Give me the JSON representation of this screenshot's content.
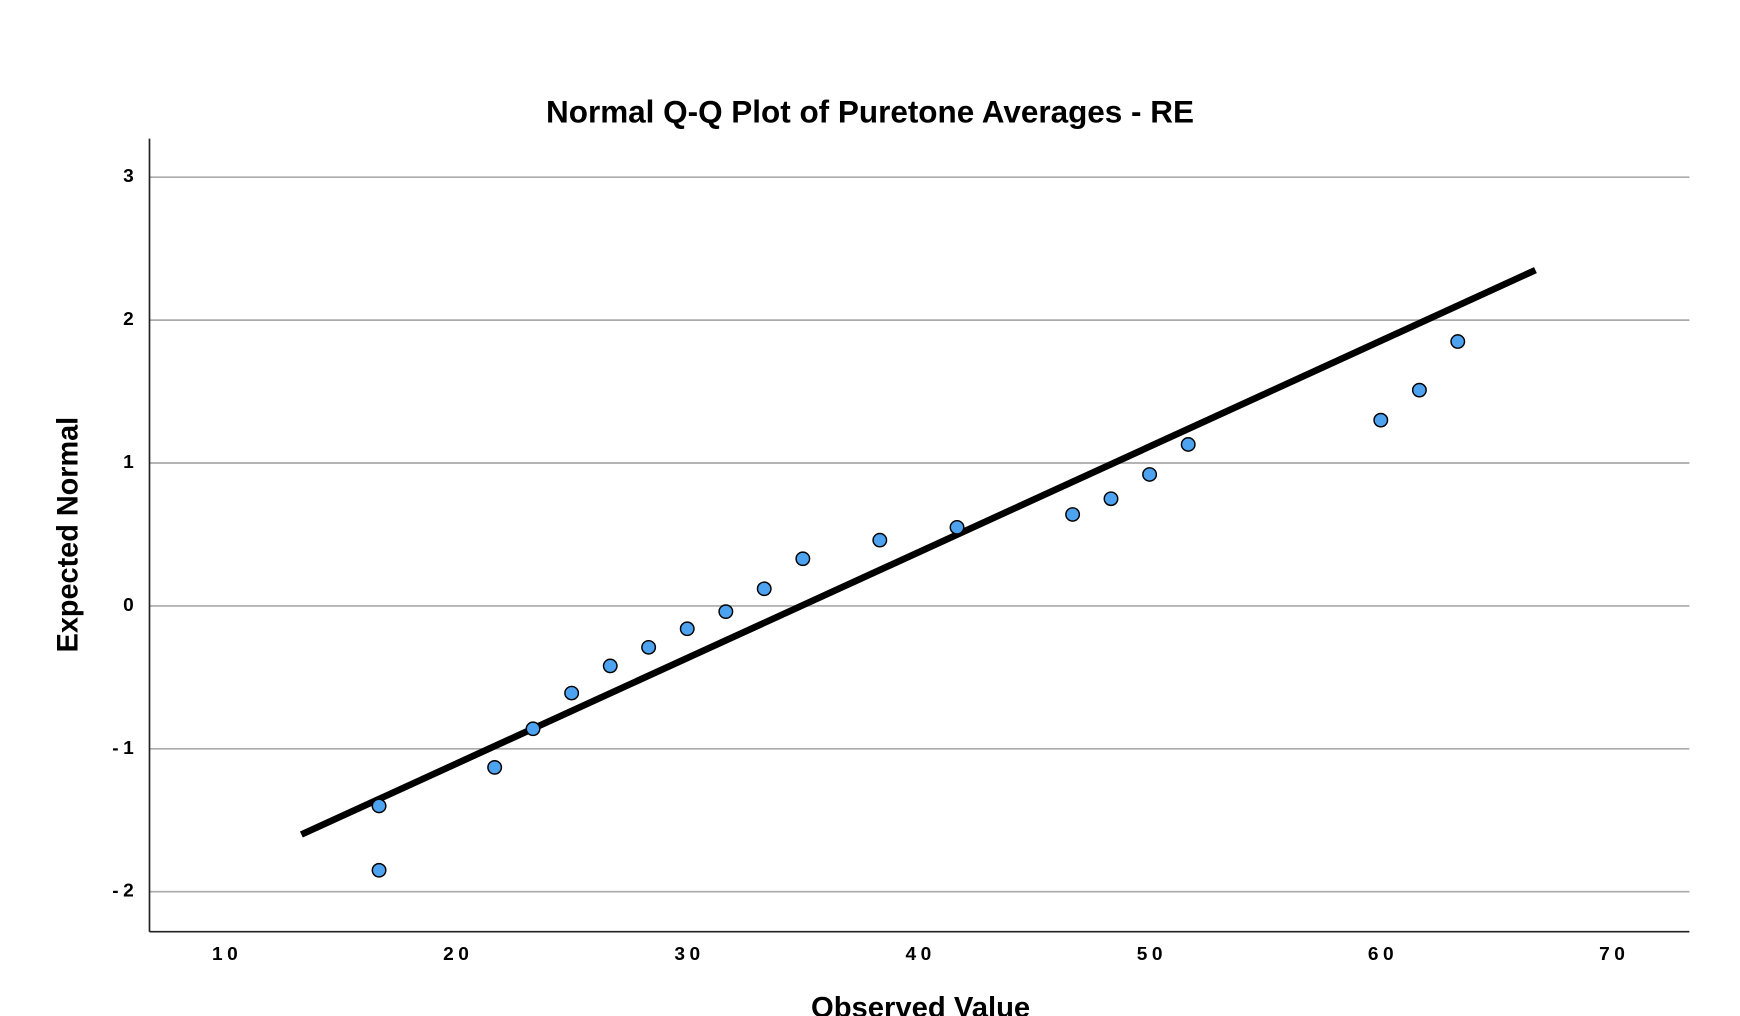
{
  "chart_data": {
    "type": "scatter",
    "title": "Normal Q-Q Plot of Puretone Averages - RE",
    "x_label": "Observed Value",
    "y_label": "Expected Normal",
    "x": [
      16.67,
      16.67,
      21.67,
      23.33,
      25,
      26.67,
      28.33,
      30,
      31.67,
      33.33,
      35,
      38.33,
      41.67,
      46.67,
      48.33,
      50,
      51.67,
      60,
      61.67,
      63.33
    ],
    "values": [
      -1.4,
      -1.85,
      -1.13,
      -0.86,
      -0.61,
      -0.42,
      -0.29,
      -0.16,
      -0.04,
      0.12,
      0.33,
      0.46,
      0.55,
      0.64,
      0.75,
      0.92,
      1.13,
      1.3,
      1.51,
      1.85
    ],
    "color": "#4da3f0",
    "reference_line": {
      "x": [
        13.31,
        66.69
      ],
      "y": [
        -1.6,
        2.35
      ],
      "color": "#000000"
    },
    "xlim": [
      6.74,
      73.35
    ],
    "xticks": [
      10,
      20,
      30,
      40,
      50,
      60,
      70
    ],
    "ylim": [
      -2.28,
      3.27
    ],
    "yticks": [
      -2,
      -1,
      0,
      1,
      2,
      3
    ],
    "grid": true
  }
}
